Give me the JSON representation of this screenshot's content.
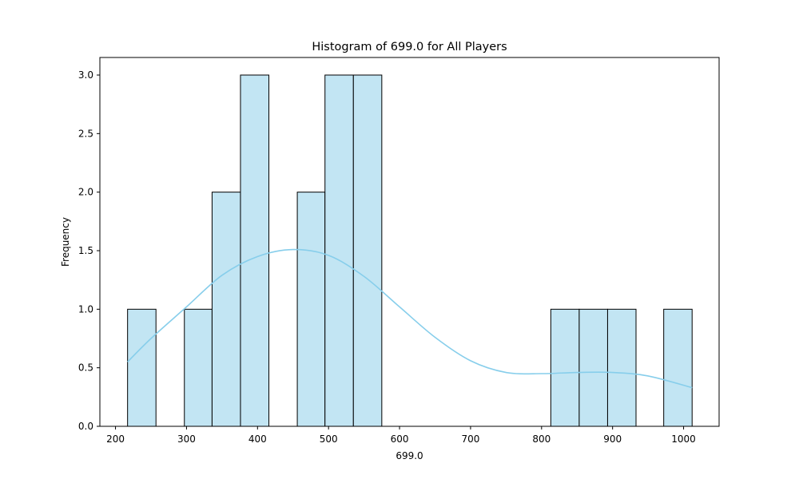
{
  "chart_data": {
    "type": "bar",
    "title": "Histogram of 699.0 for All Players",
    "xlabel": "699.0",
    "ylabel": "Frequency",
    "xlim": [
      178,
      1050
    ],
    "ylim": [
      0,
      3.15
    ],
    "xticks": [
      200,
      300,
      400,
      500,
      600,
      700,
      800,
      900,
      1000
    ],
    "xtick_labels": [
      "200",
      "300",
      "400",
      "500",
      "600",
      "700",
      "800",
      "900",
      "1000"
    ],
    "yticks": [
      0,
      0.5,
      1.0,
      1.5,
      2.0,
      2.5,
      3.0
    ],
    "ytick_labels": [
      "0.0",
      "0.5",
      "1.0",
      "1.5",
      "2.0",
      "2.5",
      "3.0"
    ],
    "bins": [
      {
        "x0": 217,
        "x1": 257,
        "count": 1
      },
      {
        "x0": 257,
        "x1": 297,
        "count": 0
      },
      {
        "x0": 297,
        "x1": 336,
        "count": 1
      },
      {
        "x0": 336,
        "x1": 376,
        "count": 2
      },
      {
        "x0": 376,
        "x1": 416,
        "count": 3
      },
      {
        "x0": 416,
        "x1": 456,
        "count": 0
      },
      {
        "x0": 456,
        "x1": 495,
        "count": 2
      },
      {
        "x0": 495,
        "x1": 535,
        "count": 3
      },
      {
        "x0": 535,
        "x1": 575,
        "count": 3
      },
      {
        "x0": 575,
        "x1": 615,
        "count": 0
      },
      {
        "x0": 615,
        "x1": 654,
        "count": 0
      },
      {
        "x0": 654,
        "x1": 694,
        "count": 0
      },
      {
        "x0": 694,
        "x1": 734,
        "count": 0
      },
      {
        "x0": 734,
        "x1": 774,
        "count": 0
      },
      {
        "x0": 774,
        "x1": 813,
        "count": 0
      },
      {
        "x0": 813,
        "x1": 853,
        "count": 1
      },
      {
        "x0": 853,
        "x1": 893,
        "count": 1
      },
      {
        "x0": 893,
        "x1": 933,
        "count": 1
      },
      {
        "x0": 933,
        "x1": 972,
        "count": 0
      },
      {
        "x0": 972,
        "x1": 1012,
        "count": 1
      }
    ],
    "kde": {
      "x": [
        217,
        250,
        300,
        350,
        400,
        450,
        500,
        550,
        600,
        650,
        700,
        750,
        800,
        850,
        900,
        950,
        1012
      ],
      "y": [
        0.55,
        0.75,
        1.02,
        1.29,
        1.45,
        1.51,
        1.46,
        1.28,
        1.02,
        0.76,
        0.56,
        0.46,
        0.45,
        0.46,
        0.46,
        0.43,
        0.33
      ]
    },
    "colors": {
      "bar_fill": "#c2e5f3",
      "bar_edge": "#000000",
      "kde_line": "#87ceeb"
    },
    "grid": false,
    "legend": "none"
  }
}
